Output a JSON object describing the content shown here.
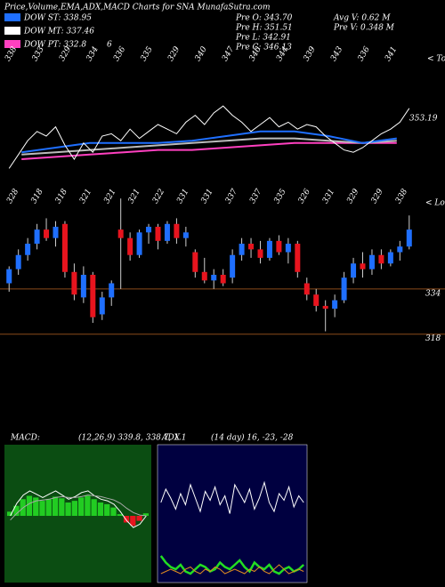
{
  "chart_data": [
    {
      "type": "line",
      "title": "Price,Volume,EMA,ADX,MACD Charts for SNA MunafaSutra.com",
      "legend": [
        {
          "label": "DOW ST: 338.95",
          "color": "#1f6fff"
        },
        {
          "label": "DOW MT: 337.46",
          "color": "#ffffff"
        },
        {
          "label": "DOW PT: 332.8",
          "color": "#ff40c0"
        }
      ],
      "legend_extra": "6",
      "annotations": [
        "Pre  O: 343.70",
        "Pre  H: 351.51",
        "Pre  L: 342.91",
        "Pre  C: 346.13",
        "Avg V: 0.62  M",
        "Pre  V: 0.348  M"
      ],
      "top_labels": [
        "338",
        "333",
        "329",
        "334",
        "336",
        "335",
        "329",
        "340",
        "347",
        "340",
        "344",
        "339",
        "343",
        "336",
        "341"
      ],
      "top_marker": "< Tops",
      "price_label": "353.19",
      "ylim": [
        320,
        370
      ],
      "series": [
        {
          "color": "#ffffff",
          "values": [
            326,
            332,
            338,
            342,
            340,
            344,
            336,
            330,
            337,
            333,
            340,
            341,
            338,
            343,
            339,
            342,
            345,
            343,
            341,
            346,
            349,
            345,
            350,
            353,
            349,
            346,
            342,
            345,
            348,
            344,
            346,
            343,
            345,
            344,
            340,
            337,
            334,
            333,
            335,
            338,
            341,
            343,
            346,
            352
          ]
        },
        {
          "color": "#1f6fff",
          "values": [
            333,
            335,
            337,
            337,
            337,
            338,
            340,
            342,
            342,
            340,
            337,
            339
          ]
        },
        {
          "color": "#bbbbbb",
          "values": [
            332,
            333,
            334,
            335,
            336,
            337,
            338,
            339,
            339,
            338,
            337,
            338
          ]
        },
        {
          "color": "#ff40c0",
          "values": [
            330,
            331,
            332,
            333,
            334,
            334,
            335,
            336,
            337,
            337,
            337,
            337
          ]
        }
      ]
    },
    {
      "type": "candlestick",
      "low_labels": [
        "328",
        "318",
        "318",
        "321",
        "321",
        "321",
        "322",
        "331",
        "331",
        "337",
        "337",
        "335",
        "326",
        "331",
        "329",
        "329",
        "338"
      ],
      "low_marker": "< Lows",
      "ylim": [
        313.5,
        367
      ],
      "up_color": "#1f6fff",
      "down_color": "#e8141e",
      "levels": [
        {
          "value": 334,
          "label": "334"
        },
        {
          "value": 318,
          "label": "318"
        }
      ],
      "open": [
        336,
        341,
        346,
        350,
        355,
        352,
        357,
        340,
        331,
        339,
        325,
        331,
        355,
        352,
        346,
        354,
        356,
        351,
        357,
        352,
        347,
        340,
        337,
        339,
        338,
        346,
        350,
        348,
        345,
        351,
        347,
        350,
        336,
        332,
        328,
        327,
        330,
        338,
        343,
        341,
        346,
        343,
        347,
        349
      ],
      "high": [
        342,
        348,
        352,
        357,
        359,
        358,
        358,
        343,
        342,
        340,
        333,
        337,
        366,
        354,
        355,
        357,
        357,
        358,
        359,
        356,
        348,
        345,
        341,
        341,
        348,
        352,
        352,
        351,
        352,
        353,
        352,
        351,
        338,
        334,
        330,
        332,
        340,
        345,
        347,
        348,
        348,
        348,
        351,
        360
      ],
      "low": [
        333,
        339,
        344,
        348,
        351,
        349,
        338,
        330,
        329,
        322,
        323,
        328,
        334,
        344,
        345,
        350,
        348,
        350,
        350,
        349,
        338,
        336,
        334,
        335,
        336,
        344,
        345,
        343,
        344,
        346,
        343,
        338,
        330,
        326,
        319,
        324,
        329,
        336,
        338,
        339,
        341,
        342,
        344,
        348
      ],
      "close": [
        341,
        346,
        350,
        355,
        352,
        356,
        340,
        332,
        339,
        324,
        331,
        336,
        352,
        346,
        354,
        356,
        351,
        357,
        352,
        354,
        340,
        337,
        339,
        336,
        346,
        350,
        348,
        345,
        351,
        347,
        350,
        340,
        332,
        328,
        327,
        330,
        338,
        343,
        341,
        346,
        343,
        347,
        349,
        355
      ]
    },
    {
      "type": "macd",
      "title": "MACD:",
      "subtitle": "(12,26,9) 339.8, 338.7, 1.1",
      "ylim": [
        -8,
        8
      ],
      "color": "#22cc22",
      "negative_color": "#e8141e",
      "histogram": [
        0.5,
        1.2,
        2,
        2.4,
        2.2,
        1.8,
        2,
        2.3,
        2.1,
        1.6,
        1.8,
        2.2,
        2.4,
        2,
        1.6,
        1.4,
        1,
        0.2,
        -0.8,
        -1.2,
        -0.6,
        0.3
      ],
      "series": [
        {
          "color": "#ffffff",
          "values": [
            0,
            1.5,
            2.5,
            3,
            2.6,
            2.2,
            2.6,
            3,
            2.5,
            2,
            2.3,
            2.8,
            3,
            2.4,
            2,
            1.8,
            1.4,
            0.5,
            -0.6,
            -1.4,
            -1,
            0
          ]
        },
        {
          "color": "#aaaaaa",
          "values": [
            -0.5,
            0.3,
            1,
            1.5,
            1.8,
            1.9,
            2,
            2.2,
            2.3,
            2.2,
            2.2,
            2.3,
            2.5,
            2.4,
            2.3,
            2.1,
            1.9,
            1.5,
            0.9,
            0.4,
            0.1,
            0
          ]
        }
      ]
    },
    {
      "type": "adx",
      "title": "ADX",
      "subtitle": "(14 day) 16, -23, -28",
      "ylim": [
        0,
        60
      ],
      "series": [
        {
          "color": "#ffffff",
          "values": [
            36,
            42,
            38,
            33,
            40,
            35,
            44,
            38,
            32,
            41,
            37,
            43,
            35,
            39,
            31,
            44,
            40,
            36,
            42,
            33,
            38,
            45,
            36,
            32,
            40,
            37,
            43,
            34,
            39,
            36
          ]
        },
        {
          "color": "#22dd22",
          "values": [
            12,
            9,
            7,
            6,
            8,
            5,
            4,
            6,
            8,
            7,
            5,
            6,
            9,
            7,
            6,
            8,
            10,
            7,
            5,
            9,
            7,
            6,
            8,
            5,
            4,
            6,
            7,
            5,
            6,
            8
          ]
        },
        {
          "color": "#e08a20",
          "values": [
            4,
            5,
            6,
            5,
            4,
            6,
            7,
            5,
            4,
            6,
            5,
            7,
            6,
            4,
            5,
            6,
            5,
            4,
            6,
            5,
            7,
            5,
            4,
            6,
            8,
            6,
            4,
            5,
            6,
            5
          ]
        }
      ]
    }
  ]
}
